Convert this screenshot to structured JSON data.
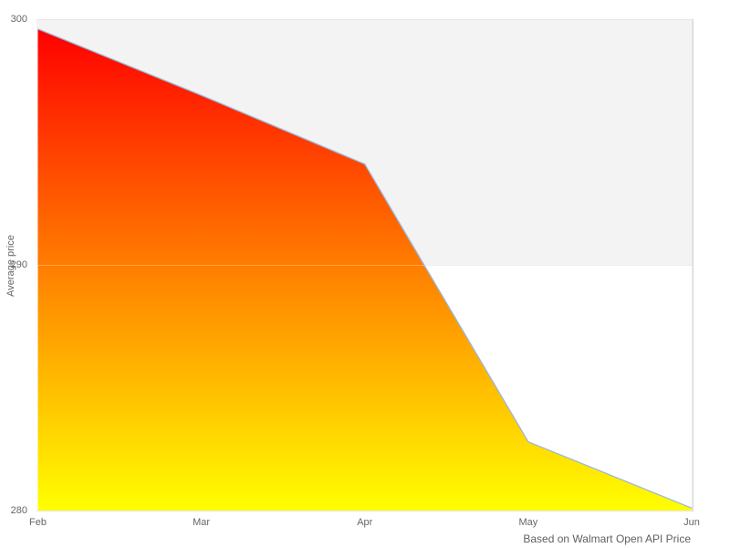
{
  "page": {
    "background": "#ffffff"
  },
  "chart_data": {
    "type": "area",
    "categories": [
      "Feb",
      "Mar",
      "Apr",
      "May",
      "Jun"
    ],
    "values": [
      299.6,
      296.9,
      294.1,
      282.8,
      280.1
    ],
    "series_name": "Average price",
    "title": "",
    "xlabel": "",
    "ylabel": "Average price",
    "caption": "Based on Walmart Open API Price",
    "ylim": [
      280,
      300
    ],
    "yticks": [
      300,
      290,
      280
    ],
    "grid": "horizontal gridlines with alternating band (gray between 290 and 300, white between 280 and 290)",
    "legend": "none",
    "style": {
      "fill_gradient_top": "#ff0000",
      "fill_gradient_bottom": "#ffff00",
      "line_color": "#9ab8dd",
      "band_color": "#f3f3f3",
      "gridline_color": "#e6e6e6",
      "plot_border_color": "#d8d8d8",
      "text_color": "#666666",
      "background": "#ffffff"
    }
  }
}
